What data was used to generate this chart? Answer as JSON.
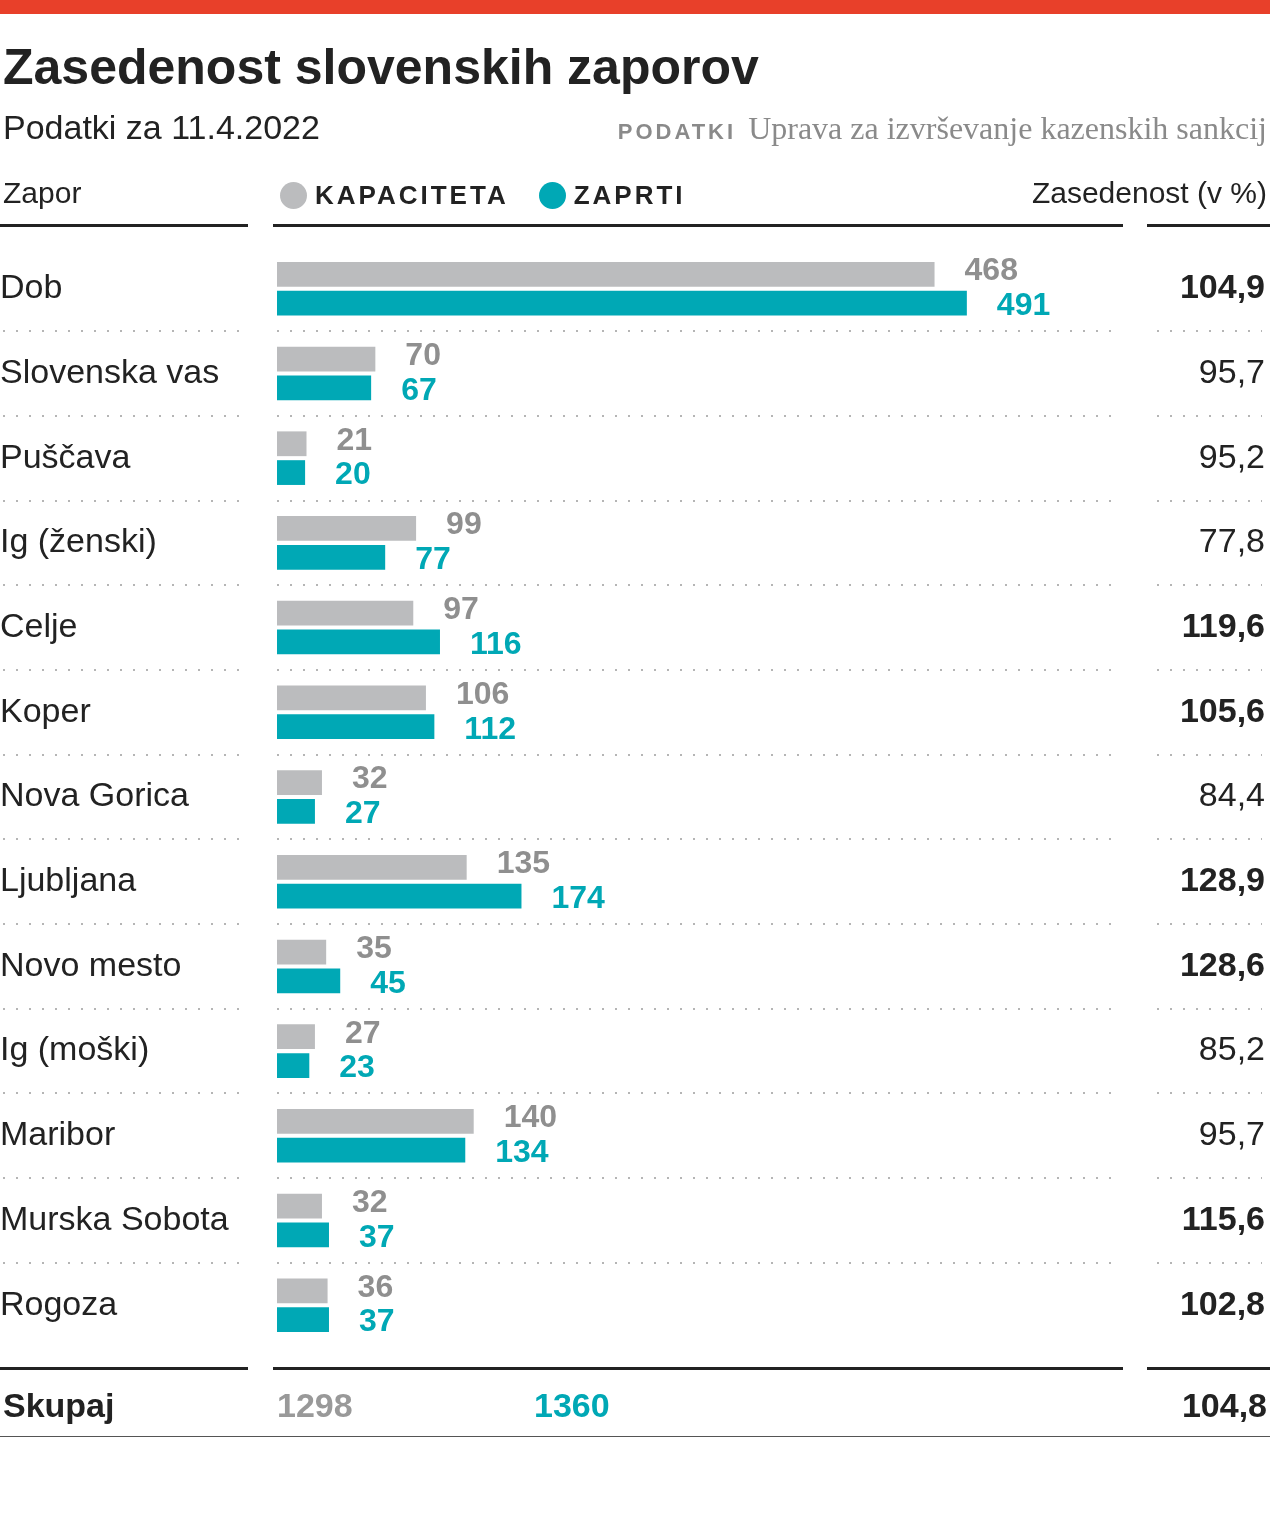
{
  "chart_data": {
    "type": "bar",
    "orientation": "horizontal",
    "title": "Zasedenost slovenskih zaporov",
    "subtitle": "Podatki za 11.4.2022",
    "ylabel": "Zapor",
    "categories": [
      "Dob",
      "Slovenska vas",
      "Puščava",
      "Ig (ženski)",
      "Celje",
      "Koper",
      "Nova Gorica",
      "Ljubljana",
      "Novo mesto",
      "Ig (moški)",
      "Maribor",
      "Murska Sobota",
      "Rogoza"
    ],
    "series": [
      {
        "name": "KAPACITETA",
        "color": "#bbbcbe",
        "values": [
          468,
          70,
          21,
          99,
          97,
          106,
          32,
          135,
          35,
          27,
          140,
          32,
          36
        ]
      },
      {
        "name": "ZAPRTI",
        "color": "#00a8b5",
        "values": [
          491,
          67,
          20,
          77,
          116,
          112,
          27,
          174,
          45,
          23,
          134,
          37,
          37
        ]
      }
    ],
    "data_labels": true,
    "legend": "top",
    "grid": "y",
    "annotations": [
      "PODATKI",
      "Uprava za izvrševanje kazenskih sankcij",
      "Zasedenost (v %)",
      "104,9",
      "95,7",
      "95,2",
      "77,8",
      "119,6",
      "105,6",
      "84,4",
      "128,9",
      "128,6",
      "85,2",
      "95,7",
      "115,6",
      "102,8",
      "Skupaj",
      "1298",
      "1360",
      "104,8"
    ]
  }
}
